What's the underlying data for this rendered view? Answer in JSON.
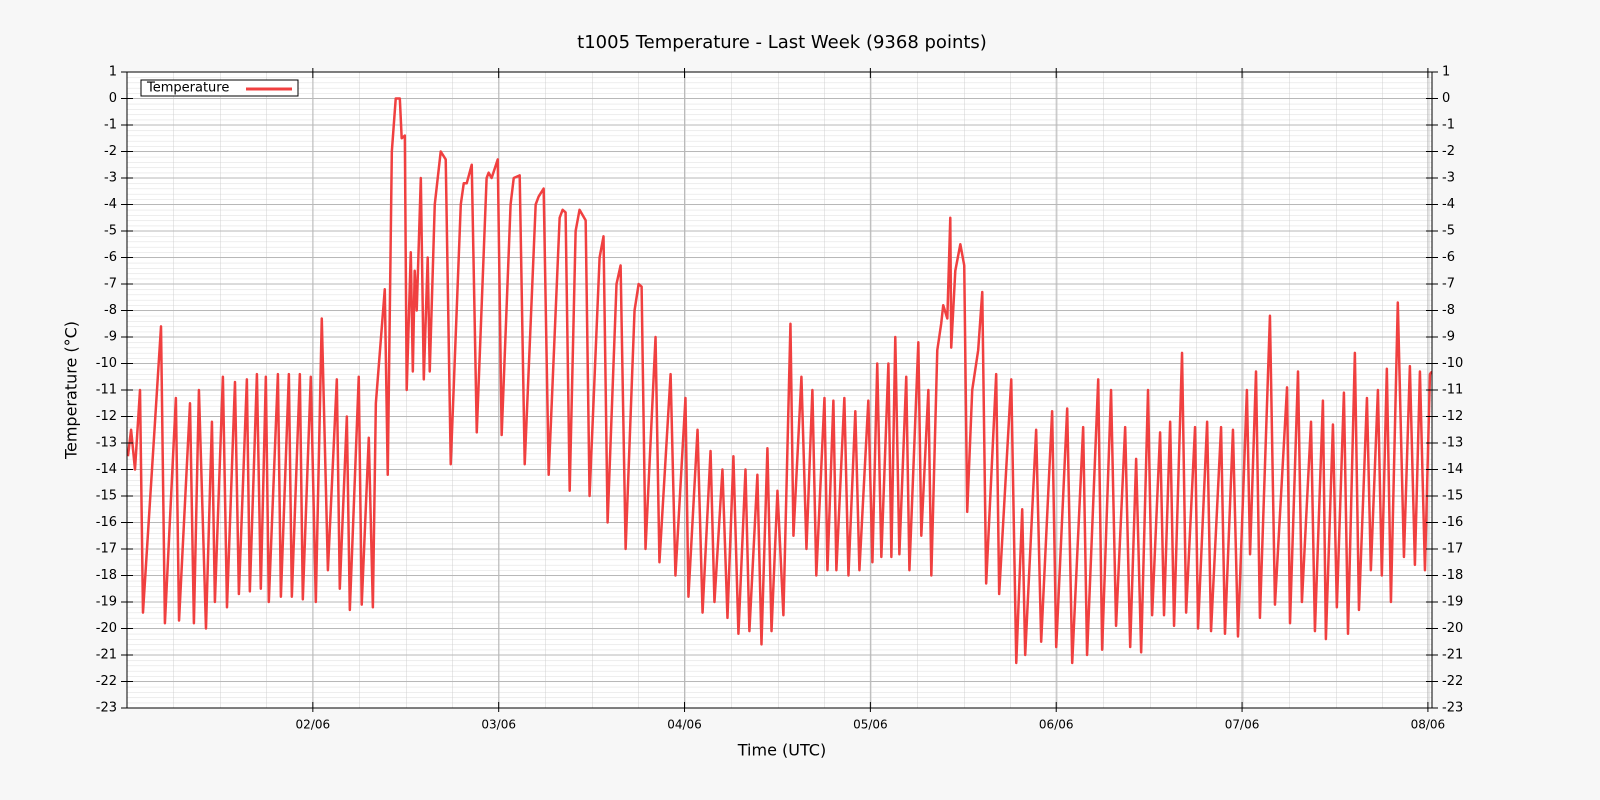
{
  "chart_data": {
    "type": "line",
    "title": "t1005 Temperature - Last Week (9368 points)",
    "x_label": "Time (UTC)",
    "y_label": "Temperature (°C)",
    "xlim": [
      1,
      8.022
    ],
    "xticks": [
      {
        "value": 2,
        "label": "02/06"
      },
      {
        "value": 3,
        "label": "03/06"
      },
      {
        "value": 4,
        "label": "04/06"
      },
      {
        "value": 5,
        "label": "05/06"
      },
      {
        "value": 6,
        "label": "06/06"
      },
      {
        "value": 7,
        "label": "07/06"
      },
      {
        "value": 8,
        "label": "08/06"
      }
    ],
    "ylim": [
      -23,
      1
    ],
    "yticks": [
      1,
      0,
      -1,
      -2,
      -3,
      -4,
      -5,
      -6,
      -7,
      -8,
      -9,
      -10,
      -11,
      -12,
      -13,
      -14,
      -15,
      -16,
      -17,
      -18,
      -19,
      -20,
      -21,
      -22,
      -23
    ],
    "grid": true,
    "legend": "top-left",
    "x": [
      1.005,
      1.022,
      1.043,
      1.07,
      1.086,
      1.183,
      1.204,
      1.263,
      1.28,
      1.339,
      1.36,
      1.387,
      1.425,
      1.457,
      1.473,
      1.516,
      1.538,
      1.581,
      1.602,
      1.645,
      1.661,
      1.699,
      1.72,
      1.747,
      1.763,
      1.812,
      1.828,
      1.871,
      1.887,
      1.93,
      1.946,
      1.989,
      2.016,
      2.048,
      2.081,
      2.129,
      2.145,
      2.183,
      2.199,
      2.247,
      2.263,
      2.301,
      2.323,
      2.339,
      2.387,
      2.403,
      2.425,
      2.446,
      2.468,
      2.478,
      2.495,
      2.505,
      2.527,
      2.538,
      2.548,
      2.559,
      2.581,
      2.597,
      2.618,
      2.629,
      2.656,
      2.688,
      2.715,
      2.742,
      2.796,
      2.812,
      2.828,
      2.855,
      2.882,
      2.935,
      2.946,
      2.962,
      2.995,
      3.016,
      3.064,
      3.081,
      3.113,
      3.14,
      3.199,
      3.215,
      3.242,
      3.269,
      3.328,
      3.344,
      3.36,
      3.382,
      3.414,
      3.435,
      3.468,
      3.489,
      3.543,
      3.564,
      3.586,
      3.634,
      3.656,
      3.683,
      3.731,
      3.753,
      3.769,
      3.79,
      3.844,
      3.865,
      3.925,
      3.951,
      4.005,
      4.021,
      4.07,
      4.097,
      4.14,
      4.161,
      4.204,
      4.231,
      4.263,
      4.29,
      4.328,
      4.349,
      4.392,
      4.414,
      4.446,
      4.468,
      4.5,
      4.532,
      4.57,
      4.586,
      4.629,
      4.656,
      4.688,
      4.709,
      4.753,
      4.769,
      4.801,
      4.817,
      4.86,
      4.882,
      4.919,
      4.941,
      4.989,
      5.011,
      5.037,
      5.059,
      5.097,
      5.113,
      5.134,
      5.156,
      5.193,
      5.21,
      5.258,
      5.274,
      5.312,
      5.328,
      5.36,
      5.381,
      5.392,
      5.414,
      5.43,
      5.435,
      5.457,
      5.484,
      5.505,
      5.521,
      5.548,
      5.58,
      5.602,
      5.623,
      5.677,
      5.693,
      5.758,
      5.785,
      5.817,
      5.833,
      5.892,
      5.919,
      5.978,
      6.0,
      6.059,
      6.086,
      6.145,
      6.166,
      6.226,
      6.247,
      6.295,
      6.322,
      6.371,
      6.398,
      6.43,
      6.457,
      6.494,
      6.516,
      6.559,
      6.58,
      6.613,
      6.634,
      6.677,
      6.699,
      6.747,
      6.763,
      6.812,
      6.833,
      6.887,
      6.908,
      6.951,
      6.978,
      7.026,
      7.043,
      7.075,
      7.096,
      7.15,
      7.177,
      7.242,
      7.258,
      7.301,
      7.322,
      7.371,
      7.392,
      7.435,
      7.451,
      7.489,
      7.51,
      7.548,
      7.57,
      7.607,
      7.629,
      7.672,
      7.693,
      7.731,
      7.752,
      7.779,
      7.801,
      7.838,
      7.871,
      7.903,
      7.93,
      7.957,
      7.984,
      8.011,
      8.022
    ],
    "series": [
      {
        "name": "Temperature",
        "color": "#f04040",
        "values": [
          -13.5,
          -12.5,
          -14,
          -11,
          -19.4,
          -8.6,
          -19.8,
          -11.3,
          -19.7,
          -11.5,
          -19.8,
          -11,
          -20,
          -12.2,
          -19,
          -10.5,
          -19.2,
          -10.7,
          -18.7,
          -10.6,
          -18.6,
          -10.4,
          -18.5,
          -10.5,
          -19,
          -10.4,
          -18.8,
          -10.4,
          -18.8,
          -10.4,
          -18.9,
          -10.5,
          -19,
          -8.3,
          -17.8,
          -10.6,
          -18.5,
          -12,
          -19.3,
          -10.5,
          -19.1,
          -12.8,
          -19.2,
          -11.5,
          -7.2,
          -14.2,
          -2,
          0,
          0,
          -1.5,
          -1.4,
          -11,
          -5.8,
          -10.3,
          -6.5,
          -8,
          -3,
          -10.6,
          -6,
          -10.3,
          -4,
          -2,
          -2.3,
          -13.8,
          -4,
          -3.2,
          -3.2,
          -2.5,
          -12.6,
          -3,
          -2.8,
          -3,
          -2.3,
          -12.7,
          -4,
          -3,
          -2.9,
          -13.8,
          -4,
          -3.7,
          -3.4,
          -14.2,
          -4.5,
          -4.2,
          -4.3,
          -14.8,
          -5,
          -4.2,
          -4.6,
          -15,
          -6,
          -5.2,
          -16,
          -7,
          -6.3,
          -17,
          -8,
          -7,
          -7.1,
          -17,
          -9,
          -17.5,
          -10.4,
          -18,
          -11.3,
          -18.8,
          -12.5,
          -19.4,
          -13.3,
          -19,
          -14,
          -19.6,
          -13.5,
          -20.2,
          -14,
          -20.1,
          -14.2,
          -20.6,
          -13.2,
          -20.1,
          -14.8,
          -19.5,
          -8.5,
          -16.5,
          -10.5,
          -17,
          -11,
          -18,
          -11.3,
          -17.8,
          -11.4,
          -17.8,
          -11.3,
          -18,
          -11.8,
          -17.8,
          -11.4,
          -17.5,
          -10,
          -17.3,
          -10,
          -17.3,
          -9,
          -17.2,
          -10.5,
          -17.8,
          -9.2,
          -16.5,
          -11,
          -18,
          -9.5,
          -8.5,
          -7.8,
          -8.3,
          -4.5,
          -9.4,
          -6.5,
          -5.5,
          -6.3,
          -15.6,
          -11,
          -9.5,
          -7.3,
          -18.3,
          -10.4,
          -18.7,
          -10.6,
          -21.3,
          -15.5,
          -21,
          -12.5,
          -20.5,
          -11.8,
          -20.7,
          -11.7,
          -21.3,
          -12.4,
          -21,
          -10.6,
          -20.8,
          -11,
          -19.9,
          -12.4,
          -20.7,
          -13.6,
          -20.9,
          -11,
          -19.5,
          -12.6,
          -19.5,
          -12.2,
          -19.9,
          -9.6,
          -19.4,
          -12.4,
          -20,
          -12.2,
          -20.1,
          -12.4,
          -20.2,
          -12.5,
          -20.3,
          -11,
          -17.2,
          -10.3,
          -19.6,
          -8.2,
          -19.1,
          -10.9,
          -19.8,
          -10.3,
          -19,
          -12.2,
          -20.1,
          -11.4,
          -20.4,
          -12.3,
          -19.2,
          -11.1,
          -20.2,
          -9.6,
          -19.3,
          -11.3,
          -17.8,
          -11,
          -18,
          -10.2,
          -19,
          -7.7,
          -17.3,
          -10.1,
          -17.6,
          -10.3,
          -17.8,
          -10.4,
          -10.3
        ]
      }
    ]
  }
}
